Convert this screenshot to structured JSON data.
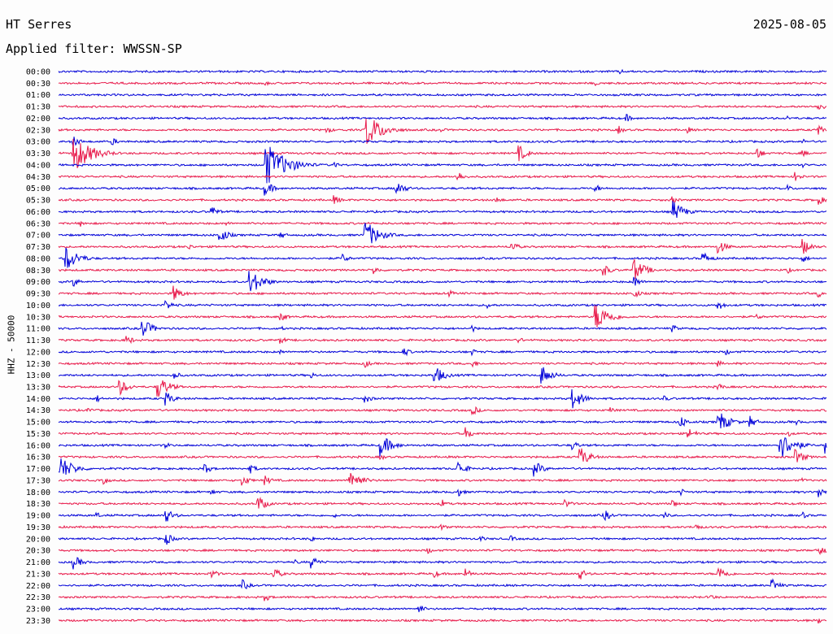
{
  "header": {
    "station": "HT Serres",
    "date": "2025-08-05",
    "filter": "Applied filter: WWSSN-SP"
  },
  "chart_data": {
    "type": "line",
    "title": "HT Serres",
    "ylabel": "HHZ - 50000",
    "colors": [
      "#0000d8",
      "#e8194a"
    ],
    "grid": false,
    "row_labels": [
      "00:00",
      "00:30",
      "01:00",
      "01:30",
      "02:00",
      "02:30",
      "03:00",
      "03:30",
      "04:00",
      "04:30",
      "05:00",
      "05:30",
      "06:00",
      "06:30",
      "07:00",
      "07:30",
      "08:00",
      "08:30",
      "09:00",
      "09:30",
      "10:00",
      "10:30",
      "11:00",
      "11:30",
      "12:00",
      "12:30",
      "13:00",
      "13:30",
      "14:00",
      "14:30",
      "15:00",
      "15:30",
      "16:00",
      "16:30",
      "17:00",
      "17:30",
      "18:00",
      "18:30",
      "19:00",
      "19:30",
      "20:00",
      "20:30",
      "21:00",
      "21:30",
      "22:00",
      "22:30",
      "23:00",
      "23:30"
    ],
    "window_minutes": 30,
    "events": [
      [
        [
          0.73,
          4
        ]
      ],
      [
        [
          0.27,
          3
        ],
        [
          0.7,
          3
        ]
      ],
      [
        [
          0.2,
          3
        ]
      ],
      [
        [
          0.99,
          6
        ]
      ],
      [
        [
          0.74,
          5
        ],
        [
          0.95,
          3
        ]
      ],
      [
        [
          0.35,
          5
        ],
        [
          0.4,
          22
        ],
        [
          0.5,
          3
        ],
        [
          0.73,
          5
        ],
        [
          0.82,
          4
        ],
        [
          0.99,
          6
        ]
      ],
      [
        [
          0.02,
          7
        ],
        [
          0.07,
          5
        ],
        [
          0.97,
          3
        ]
      ],
      [
        [
          0.02,
          24
        ],
        [
          0.6,
          10
        ],
        [
          0.91,
          7
        ],
        [
          0.97,
          4
        ]
      ],
      [
        [
          0.27,
          28
        ],
        [
          0.36,
          4
        ],
        [
          0.97,
          3
        ]
      ],
      [
        [
          0.52,
          7
        ],
        [
          0.96,
          6
        ]
      ],
      [
        [
          0.27,
          9
        ],
        [
          0.44,
          10
        ],
        [
          0.7,
          5
        ],
        [
          0.95,
          4
        ]
      ],
      [
        [
          0.36,
          6
        ],
        [
          0.57,
          5
        ],
        [
          0.8,
          5
        ],
        [
          0.99,
          6
        ]
      ],
      [
        [
          0.2,
          7
        ],
        [
          0.8,
          14
        ]
      ],
      [
        [
          0.03,
          4
        ],
        [
          0.22,
          3
        ]
      ],
      [
        [
          0.21,
          10
        ],
        [
          0.4,
          18
        ],
        [
          0.29,
          5
        ]
      ],
      [
        [
          0.17,
          4
        ],
        [
          0.59,
          7
        ],
        [
          0.86,
          9
        ],
        [
          0.97,
          10
        ]
      ],
      [
        [
          0.01,
          16
        ],
        [
          0.37,
          6
        ],
        [
          0.84,
          8
        ],
        [
          0.97,
          5
        ]
      ],
      [
        [
          0.41,
          6
        ],
        [
          0.71,
          8
        ],
        [
          0.75,
          14
        ],
        [
          0.95,
          4
        ]
      ],
      [
        [
          0.02,
          6
        ],
        [
          0.25,
          16
        ],
        [
          0.75,
          7
        ]
      ],
      [
        [
          0.15,
          10
        ],
        [
          0.51,
          4
        ],
        [
          0.75,
          6
        ],
        [
          0.99,
          5
        ]
      ],
      [
        [
          0.14,
          7
        ],
        [
          0.56,
          4
        ],
        [
          0.86,
          6
        ]
      ],
      [
        [
          0.29,
          6
        ],
        [
          0.7,
          18
        ],
        [
          0.91,
          4
        ]
      ],
      [
        [
          0.11,
          12
        ],
        [
          0.29,
          3
        ],
        [
          0.54,
          4
        ],
        [
          0.8,
          5
        ]
      ],
      [
        [
          0.09,
          6
        ],
        [
          0.29,
          5
        ],
        [
          0.6,
          4
        ]
      ],
      [
        [
          0.45,
          6
        ],
        [
          0.29,
          3
        ],
        [
          0.54,
          4
        ],
        [
          0.87,
          4
        ]
      ],
      [
        [
          0.4,
          5
        ],
        [
          0.54,
          5
        ],
        [
          0.86,
          4
        ]
      ],
      [
        [
          0.15,
          6
        ],
        [
          0.33,
          4
        ],
        [
          0.49,
          12
        ],
        [
          0.63,
          12
        ]
      ],
      [
        [
          0.08,
          10
        ],
        [
          0.13,
          14
        ],
        [
          0.86,
          5
        ]
      ],
      [
        [
          0.05,
          5
        ],
        [
          0.14,
          9
        ],
        [
          0.4,
          6
        ],
        [
          0.67,
          13
        ],
        [
          0.79,
          4
        ]
      ],
      [
        [
          0.04,
          4
        ],
        [
          0.54,
          6
        ],
        [
          0.72,
          4
        ]
      ],
      [
        [
          0.81,
          8
        ],
        [
          0.86,
          14
        ],
        [
          0.9,
          8
        ],
        [
          0.96,
          4
        ]
      ],
      [
        [
          0.53,
          8
        ],
        [
          0.82,
          8
        ],
        [
          0.95,
          4
        ]
      ],
      [
        [
          0.14,
          4
        ],
        [
          0.42,
          14
        ],
        [
          0.67,
          6
        ],
        [
          0.94,
          18
        ],
        [
          1.0,
          16
        ]
      ],
      [
        [
          0.42,
          4
        ],
        [
          0.68,
          12
        ],
        [
          0.96,
          10
        ]
      ],
      [
        [
          0.0,
          18
        ],
        [
          0.19,
          7
        ],
        [
          0.25,
          6
        ],
        [
          0.52,
          10
        ],
        [
          0.62,
          10
        ],
        [
          0.8,
          3
        ]
      ],
      [
        [
          0.06,
          5
        ],
        [
          0.38,
          14
        ],
        [
          0.27,
          6
        ],
        [
          0.24,
          7
        ],
        [
          0.97,
          3
        ]
      ],
      [
        [
          0.2,
          4
        ],
        [
          0.52,
          6
        ],
        [
          0.81,
          5
        ],
        [
          0.99,
          7
        ]
      ],
      [
        [
          0.26,
          10
        ],
        [
          0.5,
          5
        ],
        [
          0.66,
          6
        ],
        [
          0.8,
          5
        ]
      ],
      [
        [
          0.05,
          4
        ],
        [
          0.14,
          9
        ],
        [
          0.36,
          3
        ],
        [
          0.71,
          8
        ],
        [
          0.79,
          4
        ],
        [
          0.97,
          4
        ]
      ],
      [
        [
          0.5,
          4
        ],
        [
          0.83,
          5
        ]
      ],
      [
        [
          0.14,
          8
        ],
        [
          0.33,
          4
        ],
        [
          0.55,
          4
        ],
        [
          0.59,
          4
        ]
      ],
      [
        [
          0.48,
          5
        ],
        [
          0.99,
          7
        ]
      ],
      [
        [
          0.02,
          9
        ],
        [
          0.31,
          3
        ],
        [
          0.33,
          8
        ]
      ],
      [
        [
          0.2,
          6
        ],
        [
          0.28,
          8
        ],
        [
          0.49,
          5
        ],
        [
          0.53,
          7
        ],
        [
          0.68,
          7
        ],
        [
          0.86,
          10
        ]
      ],
      [
        [
          0.24,
          7
        ],
        [
          0.93,
          8
        ]
      ],
      [
        [
          0.27,
          5
        ],
        [
          0.85,
          4
        ]
      ],
      [
        [
          0.47,
          6
        ]
      ],
      [
        [
          0.99,
          4
        ]
      ]
    ]
  }
}
